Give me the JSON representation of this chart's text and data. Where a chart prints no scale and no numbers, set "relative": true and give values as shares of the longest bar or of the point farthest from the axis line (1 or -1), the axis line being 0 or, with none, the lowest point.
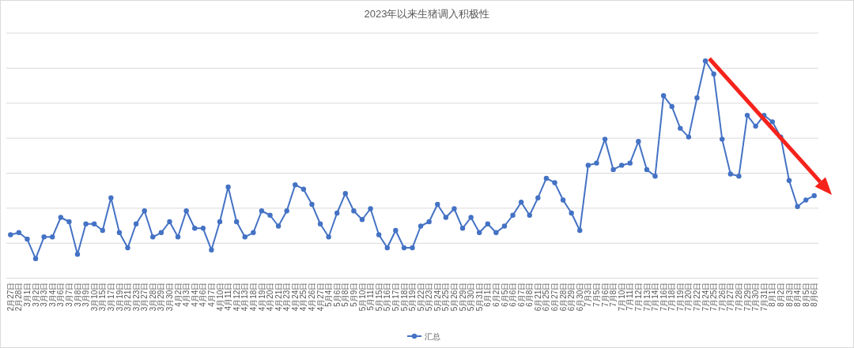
{
  "chart_data": {
    "type": "line",
    "title": "2023年以来生猪调入积极性",
    "categories": [
      "2月27日",
      "2月28日",
      "3月1日",
      "3月2日",
      "3月3日",
      "3月4日",
      "3月6日",
      "3月7日",
      "3月8日",
      "3月9日",
      "3月10日",
      "3月15日",
      "3月17日",
      "3月19日",
      "3月21日",
      "3月23日",
      "3月27日",
      "3月28日",
      "3月29日",
      "3月30日",
      "4月2日",
      "4月3日",
      "4月4日",
      "4月6日",
      "4月7日",
      "4月10日",
      "4月11日",
      "4月12日",
      "4月13日",
      "4月18日",
      "4月19日",
      "4月20日",
      "4月21日",
      "4月23日",
      "4月24日",
      "4月25日",
      "4月26日",
      "4月27日",
      "5月4日",
      "5月6日",
      "5月8日",
      "5月9日",
      "5月10日",
      "5月11日",
      "5月15日",
      "5月16日",
      "5月17日",
      "5月18日",
      "5月19日",
      "5月22日",
      "5月23日",
      "5月24日",
      "5月25日",
      "5月26日",
      "5月29日",
      "5月30日",
      "5月31日",
      "6月1日",
      "6月2日",
      "6月5日",
      "6月6日",
      "6月7日",
      "6月8日",
      "6月21日",
      "6月25日",
      "6月27日",
      "6月28日",
      "6月29日",
      "6月30日",
      "7月3日",
      "7月5日",
      "7月6日",
      "7月8日",
      "7月10日",
      "7月11日",
      "7月12日",
      "7月13日",
      "7月14日",
      "7月16日",
      "7月18日",
      "7月19日",
      "7月20日",
      "7月22日",
      "7月24日",
      "7月25日",
      "7月26日",
      "7月27日",
      "7月28日",
      "7月29日",
      "7月30日",
      "7月31日",
      "8月1日",
      "8月2日",
      "8月3日",
      "8月4日",
      "8月5日",
      "8月6日"
    ],
    "series": [
      {
        "name": "汇总",
        "color": "#4472c4",
        "values": [
          0.2,
          0.21,
          0.18,
          0.09,
          0.19,
          0.19,
          0.28,
          0.26,
          0.11,
          0.25,
          0.25,
          0.22,
          0.37,
          0.21,
          0.14,
          0.25,
          0.31,
          0.19,
          0.21,
          0.26,
          0.19,
          0.31,
          0.23,
          0.23,
          0.13,
          0.26,
          0.42,
          0.26,
          0.19,
          0.21,
          0.31,
          0.29,
          0.24,
          0.31,
          0.43,
          0.41,
          0.34,
          0.25,
          0.19,
          0.3,
          0.39,
          0.31,
          0.27,
          0.32,
          0.2,
          0.14,
          0.22,
          0.14,
          0.14,
          0.24,
          0.26,
          0.34,
          0.28,
          0.32,
          0.23,
          0.28,
          0.21,
          0.25,
          0.21,
          0.24,
          0.29,
          0.35,
          0.29,
          0.37,
          0.46,
          0.44,
          0.36,
          0.3,
          0.22,
          0.52,
          0.53,
          0.64,
          0.5,
          0.52,
          0.53,
          0.63,
          0.5,
          0.47,
          0.84,
          0.79,
          0.69,
          0.65,
          0.83,
          1,
          0.94,
          0.64,
          0.48,
          0.47,
          0.75,
          0.7,
          0.75,
          0.72,
          0.65,
          0.45,
          0.33,
          0.36,
          0.38
        ]
      }
    ],
    "relative": true,
    "grid": "y",
    "legend": "bottom",
    "marker": "circle"
  }
}
